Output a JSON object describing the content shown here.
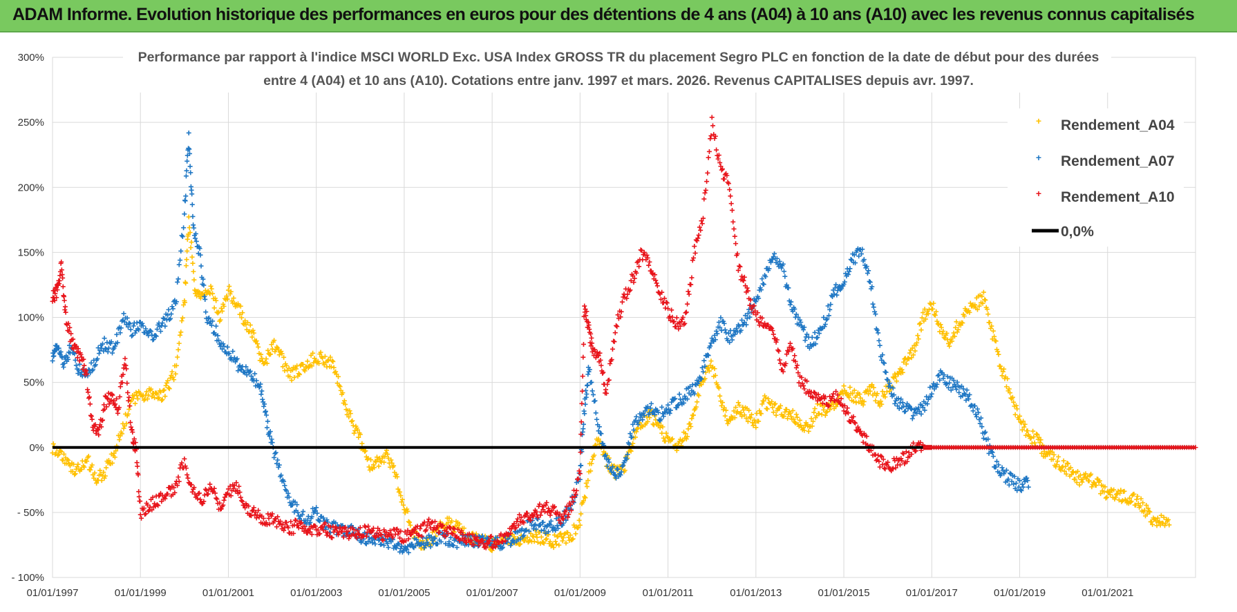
{
  "header": {
    "title": "ADAM Informe. Evolution historique des performances en euros pour des détentions de 4 ans (A04) à 10 ans (A10) avec les revenus connus capitalisés"
  },
  "chart_data": {
    "type": "scatter",
    "title": "",
    "subtitle_lines": [
      "Performance par rapport à l'indice MSCI WORLD Exc. USA Index GROSS TR  du placement Segro PLC en fonction de la date de début pour des durées",
      "entre 4 (A04) et 10 ans (A10).  Cotations entre janv. 1997 et mars. 2026. Revenus CAPITALISES depuis avr. 1997."
    ],
    "xlabel": "",
    "ylabel": "",
    "xlim": [
      1997.0,
      2023.0
    ],
    "ylim": [
      -100,
      300
    ],
    "yticks": [
      {
        "value": 300,
        "label": "300%"
      },
      {
        "value": 250,
        "label": "250%"
      },
      {
        "value": 200,
        "label": "200%"
      },
      {
        "value": 150,
        "label": "150%"
      },
      {
        "value": 100,
        "label": "100%"
      },
      {
        "value": 50,
        "label": "50%"
      },
      {
        "value": 0,
        "label": "0%"
      },
      {
        "value": -50,
        "label": "- 50%"
      },
      {
        "value": -100,
        "label": "- 100%"
      }
    ],
    "xticks": [
      {
        "value": 1997,
        "label": "01/01/1997"
      },
      {
        "value": 1999,
        "label": "01/01/1999"
      },
      {
        "value": 2001,
        "label": "01/01/2001"
      },
      {
        "value": 2003,
        "label": "01/01/2003"
      },
      {
        "value": 2005,
        "label": "01/01/2005"
      },
      {
        "value": 2007,
        "label": "01/01/2007"
      },
      {
        "value": 2009,
        "label": "01/01/2009"
      },
      {
        "value": 2011,
        "label": "01/01/2011"
      },
      {
        "value": 2013,
        "label": "01/01/2013"
      },
      {
        "value": 2015,
        "label": "01/01/2015"
      },
      {
        "value": 2017,
        "label": "01/01/2017"
      },
      {
        "value": 2019,
        "label": "01/01/2019"
      },
      {
        "value": 2021,
        "label": "01/01/2021"
      }
    ],
    "grid": true,
    "legend_position": "top-right",
    "series": [
      {
        "name": "Rendement_A04",
        "color": "#ffc000",
        "marker": "plus",
        "x": [
          1997.0,
          1997.2,
          1997.4,
          1997.6,
          1997.8,
          1998.0,
          1998.2,
          1998.4,
          1998.6,
          1998.8,
          1999.0,
          1999.2,
          1999.4,
          1999.6,
          1999.8,
          2000.0,
          2000.1,
          2000.25,
          2000.4,
          2000.6,
          2000.8,
          2001.0,
          2001.2,
          2001.4,
          2001.6,
          2001.8,
          2002.0,
          2002.2,
          2002.4,
          2002.6,
          2002.8,
          2003.0,
          2003.2,
          2003.4,
          2003.6,
          2003.8,
          2004.0,
          2004.2,
          2004.4,
          2004.6,
          2004.8,
          2005.0,
          2005.2,
          2005.4,
          2005.6,
          2005.8,
          2006.0,
          2006.2,
          2006.4,
          2006.6,
          2006.8,
          2007.0,
          2007.2,
          2007.4,
          2007.6,
          2007.8,
          2008.0,
          2008.2,
          2008.4,
          2008.6,
          2008.8,
          2009.0,
          2009.2,
          2009.4,
          2009.6,
          2009.8,
          2010.0,
          2010.2,
          2010.4,
          2010.6,
          2010.8,
          2011.0,
          2011.2,
          2011.4,
          2011.6,
          2011.8,
          2012.0,
          2012.2,
          2012.4,
          2012.6,
          2012.8,
          2013.0,
          2013.2,
          2013.4,
          2013.6,
          2013.8,
          2014.0,
          2014.2,
          2014.4,
          2014.6,
          2014.8,
          2015.0,
          2015.2,
          2015.4,
          2015.6,
          2015.8,
          2016.0,
          2016.2,
          2016.4,
          2016.6,
          2016.8,
          2017.0,
          2017.2,
          2017.4,
          2017.6,
          2017.8,
          2018.0,
          2018.2,
          2018.4,
          2018.6,
          2018.8,
          2019.0,
          2019.2,
          2019.4,
          2019.6,
          2019.8,
          2020.0,
          2020.2,
          2020.4,
          2020.6,
          2020.8,
          2021.0,
          2021.2,
          2021.4,
          2021.6,
          2021.8,
          2022.0,
          2022.2,
          2022.4
        ],
        "y": [
          0,
          -5,
          -15,
          -18,
          -10,
          -25,
          -18,
          -5,
          15,
          35,
          40,
          42,
          38,
          45,
          60,
          110,
          175,
          120,
          115,
          120,
          100,
          120,
          110,
          95,
          85,
          60,
          80,
          70,
          55,
          60,
          65,
          70,
          68,
          62,
          40,
          20,
          5,
          -15,
          -10,
          -5,
          -20,
          -45,
          -65,
          -75,
          -72,
          -62,
          -58,
          -62,
          -68,
          -70,
          -72,
          -75,
          -73,
          -71,
          -70,
          -68,
          -68,
          -70,
          -72,
          -70,
          -68,
          -55,
          -20,
          5,
          -10,
          -20,
          -15,
          5,
          20,
          25,
          15,
          5,
          0,
          10,
          25,
          55,
          65,
          35,
          20,
          30,
          25,
          20,
          35,
          30,
          28,
          25,
          20,
          15,
          30,
          28,
          35,
          45,
          40,
          35,
          48,
          35,
          45,
          55,
          65,
          75,
          100,
          110,
          90,
          80,
          95,
          105,
          110,
          115,
          85,
          60,
          40,
          20,
          10,
          5,
          -5,
          -10,
          -15,
          -20,
          -25,
          -25,
          -30,
          -35,
          -35,
          -38,
          -40,
          -45,
          -55,
          -57,
          -58
        ]
      },
      {
        "name": "Rendement_A07",
        "color": "#1f77c4",
        "marker": "plus",
        "x": [
          1997.0,
          1997.1,
          1997.25,
          1997.4,
          1997.6,
          1997.8,
          1998.0,
          1998.2,
          1998.4,
          1998.6,
          1998.8,
          1999.0,
          1999.2,
          1999.4,
          1999.6,
          1999.8,
          2000.0,
          2000.1,
          2000.2,
          2000.35,
          2000.5,
          2000.7,
          2000.9,
          2001.1,
          2001.3,
          2001.5,
          2001.7,
          2001.85,
          2002.0,
          2002.2,
          2002.4,
          2002.6,
          2002.8,
          2003.0,
          2003.2,
          2003.4,
          2003.6,
          2003.8,
          2004.0,
          2004.2,
          2004.4,
          2004.6,
          2004.8,
          2005.0,
          2005.2,
          2005.4,
          2005.6,
          2005.8,
          2006.0,
          2006.2,
          2006.4,
          2006.6,
          2006.8,
          2007.0,
          2007.2,
          2007.4,
          2007.6,
          2007.8,
          2008.0,
          2008.2,
          2008.4,
          2008.6,
          2008.8,
          2009.0,
          2009.1,
          2009.2,
          2009.4,
          2009.6,
          2009.8,
          2010.0,
          2010.2,
          2010.4,
          2010.6,
          2010.8,
          2011.0,
          2011.2,
          2011.4,
          2011.6,
          2011.8,
          2012.0,
          2012.2,
          2012.4,
          2012.6,
          2012.8,
          2013.0,
          2013.2,
          2013.4,
          2013.6,
          2013.8,
          2014.0,
          2014.2,
          2014.4,
          2014.6,
          2014.8,
          2015.0,
          2015.2,
          2015.4,
          2015.6,
          2015.8,
          2016.0,
          2016.2,
          2016.4,
          2016.6,
          2016.8,
          2017.0,
          2017.2,
          2017.4,
          2017.6,
          2017.8,
          2018.0,
          2018.2,
          2018.4,
          2018.6,
          2018.8,
          2019.0,
          2019.2
        ],
        "y": [
          70,
          80,
          65,
          75,
          60,
          55,
          70,
          80,
          75,
          100,
          90,
          95,
          85,
          90,
          100,
          110,
          180,
          240,
          170,
          150,
          100,
          90,
          75,
          70,
          60,
          55,
          50,
          25,
          0,
          -20,
          -40,
          -50,
          -55,
          -50,
          -60,
          -62,
          -65,
          -65,
          -68,
          -70,
          -70,
          -72,
          -75,
          -78,
          -75,
          -73,
          -72,
          -70,
          -71,
          -73,
          -72,
          -72,
          -73,
          -74,
          -73,
          -71,
          -68,
          -60,
          -58,
          -62,
          -60,
          -55,
          -45,
          -20,
          30,
          60,
          20,
          -10,
          -20,
          -15,
          15,
          25,
          30,
          25,
          30,
          35,
          40,
          45,
          60,
          80,
          95,
          85,
          90,
          100,
          115,
          130,
          150,
          140,
          110,
          95,
          80,
          85,
          100,
          120,
          130,
          145,
          150,
          130,
          80,
          50,
          35,
          30,
          25,
          30,
          45,
          55,
          50,
          45,
          40,
          30,
          10,
          -10,
          -20,
          -25,
          -30,
          -28
        ]
      },
      {
        "name": "Rendement_A10",
        "color": "#e8141b",
        "marker": "plus",
        "x": [
          1997.0,
          1997.1,
          1997.2,
          1997.3,
          1997.45,
          1997.6,
          1997.75,
          1997.9,
          1998.05,
          1998.2,
          1998.35,
          1998.5,
          1998.65,
          1998.8,
          1998.9,
          1999.0,
          1999.2,
          1999.4,
          1999.6,
          1999.8,
          2000.0,
          2000.2,
          2000.4,
          2000.6,
          2000.8,
          2001.0,
          2001.2,
          2001.4,
          2001.6,
          2001.8,
          2002.0,
          2002.2,
          2002.4,
          2002.6,
          2002.8,
          2003.0,
          2003.2,
          2003.4,
          2003.6,
          2003.8,
          2004.0,
          2004.2,
          2004.4,
          2004.6,
          2004.8,
          2005.0,
          2005.2,
          2005.4,
          2005.6,
          2005.8,
          2006.0,
          2006.2,
          2006.4,
          2006.6,
          2006.8,
          2007.0,
          2007.2,
          2007.4,
          2007.6,
          2007.8,
          2008.0,
          2008.2,
          2008.4,
          2008.6,
          2008.8,
          2009.0,
          2009.1,
          2009.2,
          2009.3,
          2009.45,
          2009.6,
          2009.8,
          2010.0,
          2010.2,
          2010.4,
          2010.6,
          2010.8,
          2011.0,
          2011.2,
          2011.4,
          2011.6,
          2011.8,
          2012.0,
          2012.2,
          2012.4,
          2012.6,
          2012.8,
          2013.0,
          2013.2,
          2013.4,
          2013.6,
          2013.8,
          2014.0,
          2014.2,
          2014.4,
          2014.6,
          2014.8,
          2015.0,
          2015.2,
          2015.4,
          2015.6,
          2015.8,
          2016.0,
          2016.2,
          2016.4,
          2016.6,
          2016.8,
          2017.0,
          2017.5,
          2018.0,
          2018.5,
          2019.0,
          2019.5,
          2020.0,
          2020.5,
          2021.0,
          2021.5,
          2022.0,
          2022.5,
          2023.0
        ],
        "y": [
          115,
          120,
          140,
          100,
          80,
          70,
          60,
          20,
          10,
          35,
          40,
          30,
          70,
          10,
          0,
          -50,
          -45,
          -40,
          -35,
          -30,
          -10,
          -35,
          -40,
          -30,
          -45,
          -35,
          -30,
          -45,
          -50,
          -55,
          -55,
          -58,
          -62,
          -60,
          -62,
          -63,
          -63,
          -65,
          -64,
          -66,
          -65,
          -65,
          -67,
          -68,
          -67,
          -68,
          -66,
          -64,
          -58,
          -62,
          -65,
          -66,
          -70,
          -70,
          -72,
          -73,
          -70,
          -65,
          -55,
          -55,
          -50,
          -45,
          -50,
          -55,
          -45,
          -20,
          110,
          90,
          75,
          70,
          40,
          90,
          115,
          130,
          150,
          140,
          120,
          105,
          95,
          100,
          150,
          180,
          250,
          215,
          200,
          140,
          120,
          100,
          95,
          90,
          60,
          80,
          50,
          45,
          40,
          35,
          40,
          30,
          20,
          10,
          0,
          -10,
          -15,
          -12,
          -8,
          0,
          0,
          0,
          0,
          0,
          0,
          0,
          0,
          0,
          0,
          0,
          0,
          0,
          0,
          0
        ]
      },
      {
        "name": "0,0%",
        "color": "#000000",
        "marker": "line",
        "x": [
          1997.0,
          2023.0
        ],
        "y": [
          0,
          0
        ]
      }
    ]
  }
}
